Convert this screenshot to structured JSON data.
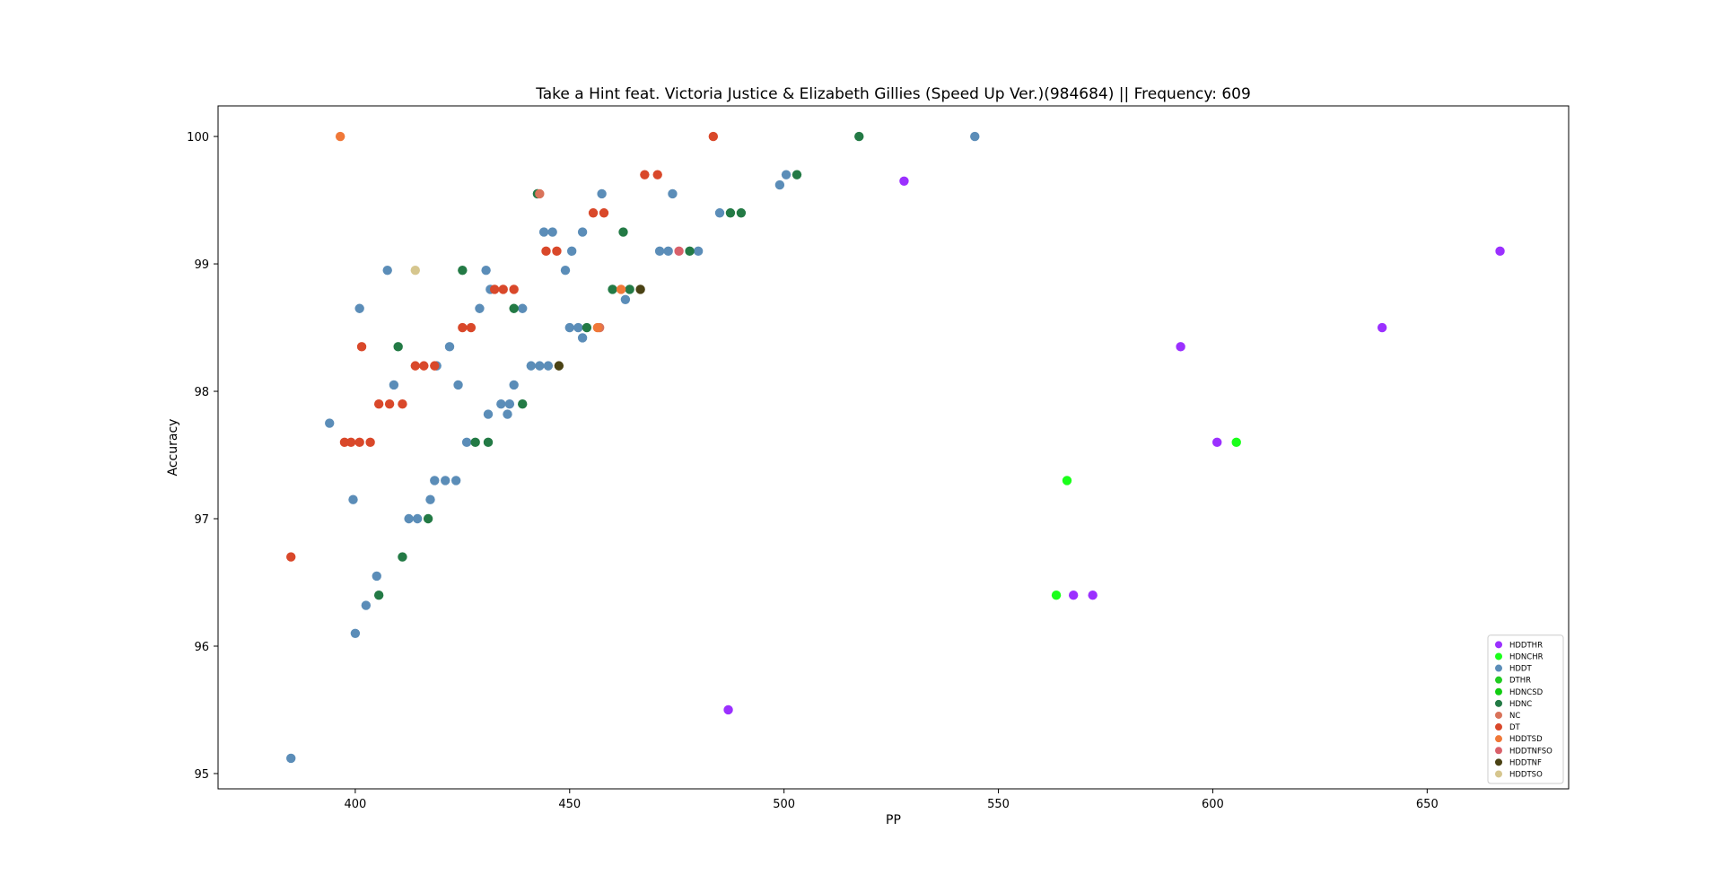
{
  "chart_data": {
    "type": "scatter",
    "title": "Take a Hint feat. Victoria Justice & Elizabeth Gillies (Speed Up Ver.)(984684) || Frequency: 609",
    "xlabel": "PP",
    "ylabel": "Accuracy",
    "xlim": [
      368,
      683
    ],
    "ylim": [
      94.88,
      100.24
    ],
    "xticks": [
      400,
      450,
      500,
      550,
      600,
      650
    ],
    "yticks": [
      95,
      96,
      97,
      98,
      99,
      100
    ],
    "grid": false,
    "legend_position": "lower right",
    "series": [
      {
        "name": "HDDTHR",
        "color": "#9b30ff",
        "points": [
          [
            528,
            99.65
          ],
          [
            667,
            99.1
          ],
          [
            639.5,
            98.5
          ],
          [
            592.5,
            98.35
          ],
          [
            601,
            97.6
          ],
          [
            567.5,
            96.4
          ],
          [
            572,
            96.4
          ],
          [
            487,
            95.5
          ]
        ]
      },
      {
        "name": "HDNCHR",
        "color": "#1aff1a",
        "points": [
          [
            605.5,
            97.6
          ],
          [
            566,
            97.3
          ],
          [
            563.5,
            96.4
          ]
        ]
      },
      {
        "name": "HDDT",
        "color": "#5b8db8",
        "points": [
          [
            544.5,
            100
          ],
          [
            500.5,
            99.7
          ],
          [
            499,
            99.62
          ],
          [
            474,
            99.55
          ],
          [
            457.5,
            99.55
          ],
          [
            485,
            99.4
          ],
          [
            471,
            99.1
          ],
          [
            473,
            99.1
          ],
          [
            480,
            99.1
          ],
          [
            444,
            99.25
          ],
          [
            446,
            99.25
          ],
          [
            453,
            99.25
          ],
          [
            442.5,
            99.55
          ],
          [
            450.5,
            99.1
          ],
          [
            407.5,
            98.95
          ],
          [
            430.5,
            98.95
          ],
          [
            449,
            98.95
          ],
          [
            401,
            98.65
          ],
          [
            429,
            98.65
          ],
          [
            439,
            98.65
          ],
          [
            431.5,
            98.8
          ],
          [
            463,
            98.72
          ],
          [
            450,
            98.5
          ],
          [
            452,
            98.5
          ],
          [
            453,
            98.42
          ],
          [
            422,
            98.35
          ],
          [
            419,
            98.2
          ],
          [
            441,
            98.2
          ],
          [
            443,
            98.2
          ],
          [
            445,
            98.2
          ],
          [
            409,
            98.05
          ],
          [
            424,
            98.05
          ],
          [
            437,
            98.05
          ],
          [
            434,
            97.9
          ],
          [
            436,
            97.9
          ],
          [
            431,
            97.82
          ],
          [
            435.5,
            97.82
          ],
          [
            394,
            97.75
          ],
          [
            426,
            97.6
          ],
          [
            399.5,
            97.15
          ],
          [
            417.5,
            97.15
          ],
          [
            418.5,
            97.3
          ],
          [
            421,
            97.3
          ],
          [
            423.5,
            97.3
          ],
          [
            412.5,
            97.0
          ],
          [
            414.5,
            97.0
          ],
          [
            405,
            96.55
          ],
          [
            402.5,
            96.32
          ],
          [
            400,
            96.1
          ],
          [
            385,
            95.12
          ]
        ]
      },
      {
        "name": "DTHR",
        "color": "#22cc22",
        "points": []
      },
      {
        "name": "HDNCSD",
        "color": "#11cc11",
        "points": []
      },
      {
        "name": "HDNC",
        "color": "#237a45",
        "points": [
          [
            517.5,
            100
          ],
          [
            503,
            99.7
          ],
          [
            487.5,
            99.4
          ],
          [
            490,
            99.4
          ],
          [
            478,
            99.1
          ],
          [
            462.5,
            99.25
          ],
          [
            442.5,
            99.55
          ],
          [
            425,
            98.95
          ],
          [
            460,
            98.8
          ],
          [
            464,
            98.8
          ],
          [
            437,
            98.65
          ],
          [
            454,
            98.5
          ],
          [
            410,
            98.35
          ],
          [
            439,
            97.9
          ],
          [
            428,
            97.6
          ],
          [
            431,
            97.6
          ],
          [
            417,
            97.0
          ],
          [
            411,
            96.7
          ],
          [
            405.5,
            96.4
          ]
        ]
      },
      {
        "name": "NC",
        "color": "#d9735a",
        "points": [
          [
            443,
            99.55
          ],
          [
            457,
            98.5
          ]
        ]
      },
      {
        "name": "DT",
        "color": "#d9482a",
        "points": [
          [
            483.5,
            100
          ],
          [
            467.5,
            99.7
          ],
          [
            470.5,
            99.7
          ],
          [
            455.5,
            99.4
          ],
          [
            458,
            99.4
          ],
          [
            444.5,
            99.1
          ],
          [
            447,
            99.1
          ],
          [
            432.5,
            98.8
          ],
          [
            434.5,
            98.8
          ],
          [
            437,
            98.8
          ],
          [
            401.5,
            98.35
          ],
          [
            425,
            98.5
          ],
          [
            427,
            98.5
          ],
          [
            414,
            98.2
          ],
          [
            416,
            98.2
          ],
          [
            418.5,
            98.2
          ],
          [
            405.5,
            97.9
          ],
          [
            408,
            97.9
          ],
          [
            411,
            97.9
          ],
          [
            397.5,
            97.6
          ],
          [
            399,
            97.6
          ],
          [
            401,
            97.6
          ],
          [
            403.5,
            97.6
          ],
          [
            385,
            96.7
          ]
        ]
      },
      {
        "name": "HDDTSD",
        "color": "#f07838",
        "points": [
          [
            396.5,
            100
          ],
          [
            462,
            98.8
          ],
          [
            456.5,
            98.5
          ]
        ]
      },
      {
        "name": "HDDTNFSO",
        "color": "#d9606a",
        "points": [
          [
            475.5,
            99.1
          ]
        ]
      },
      {
        "name": "HDDTNF",
        "color": "#4a4214",
        "points": [
          [
            466.5,
            98.8
          ],
          [
            447.5,
            98.2
          ]
        ]
      },
      {
        "name": "HDDTSO",
        "color": "#d6c68e",
        "points": [
          [
            414,
            98.95
          ]
        ]
      }
    ]
  }
}
